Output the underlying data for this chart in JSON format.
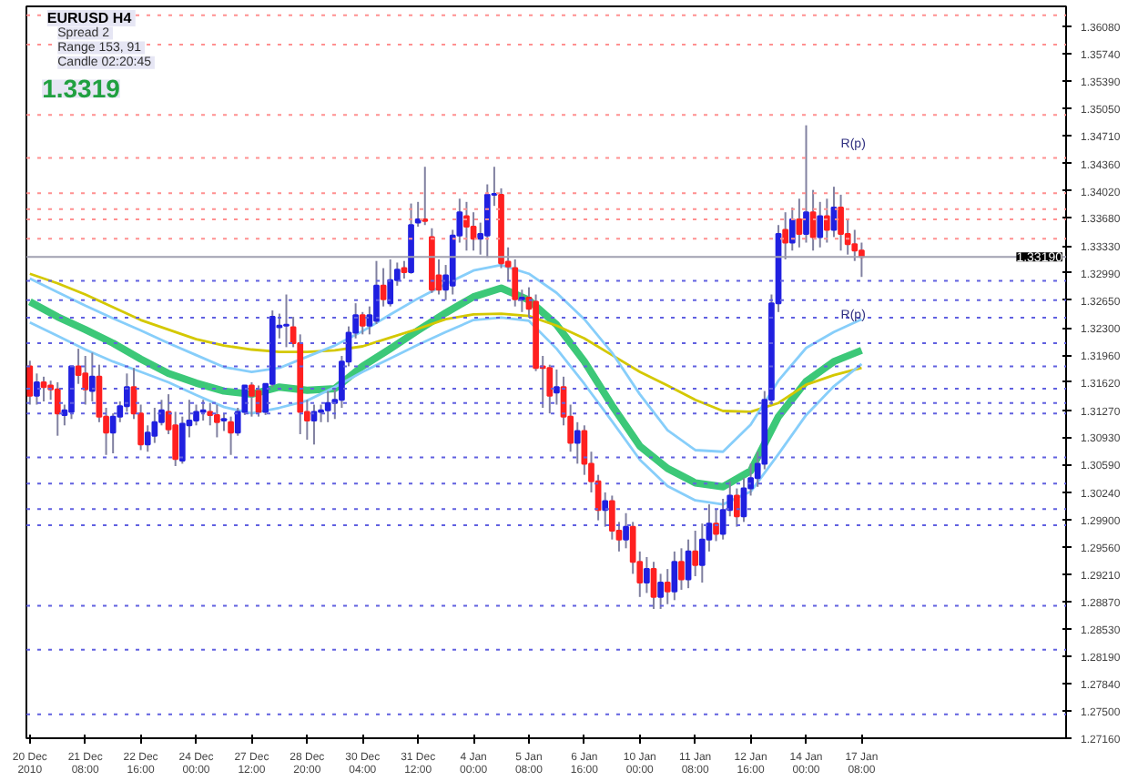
{
  "chart_data": {
    "type": "candlestick",
    "title": "EURUSD  H4",
    "annotations": [
      "Spread  2",
      "Range  153, 91",
      "Candle  02:20:45",
      "1.3319",
      {
        "text": "R(p)",
        "y": 1.3452
      },
      {
        "text": "R(p)",
        "y": 1.3237
      }
    ],
    "categories": [
      "20 Dec 2010",
      null,
      null,
      null,
      null,
      null,
      null,
      null,
      "21 Dec 08:00",
      null,
      null,
      null,
      null,
      null,
      null,
      null,
      "22 Dec 16:00",
      null,
      null,
      null,
      null,
      null,
      null,
      null,
      "24 Dec 00:00",
      null,
      null,
      null,
      null,
      null,
      null,
      null,
      "27 Dec 12:00",
      null,
      null,
      null,
      null,
      null,
      null,
      null,
      "28 Dec 20:00",
      null,
      null,
      null,
      null,
      null,
      null,
      null,
      "30 Dec 04:00",
      null,
      null,
      null,
      null,
      null,
      null,
      null,
      "31 Dec 12:00",
      null,
      null,
      null,
      null,
      null,
      null,
      null,
      "4 Jan 00:00",
      null,
      null,
      null,
      null,
      null,
      null,
      null,
      "5 Jan 08:00",
      null,
      null,
      null,
      null,
      null,
      null,
      null,
      "6 Jan 16:00",
      null,
      null,
      null,
      null,
      null,
      null,
      null,
      "10 Jan 00:00",
      null,
      null,
      null,
      null,
      null,
      null,
      null,
      "11 Jan 08:00",
      null,
      null,
      null,
      null,
      null,
      null,
      null,
      "12 Jan 16:00",
      null,
      null,
      null,
      null,
      null,
      null,
      null,
      "14 Jan 00:00",
      null,
      null,
      null,
      null,
      null,
      null,
      null,
      "17 Jan 08:00",
      null,
      null,
      null,
      null,
      null,
      null,
      null,
      null,
      null,
      null,
      null,
      null,
      null,
      null,
      null,
      null,
      null,
      null,
      null,
      null,
      null,
      null,
      null,
      null,
      null,
      null,
      null,
      null,
      null
    ],
    "ohlc": [
      [
        1.3182,
        1.3189,
        1.3134,
        1.3145
      ],
      [
        1.3145,
        1.3173,
        1.3134,
        1.3162
      ],
      [
        1.3162,
        1.3169,
        1.3138,
        1.3156
      ],
      [
        1.3158,
        1.3164,
        1.314,
        1.3153
      ],
      [
        1.3153,
        1.3162,
        1.3095,
        1.3123
      ],
      [
        1.3121,
        1.3134,
        1.3108,
        1.3127
      ],
      [
        1.3125,
        1.3182,
        1.3116,
        1.3182
      ],
      [
        1.3182,
        1.3204,
        1.316,
        1.3171
      ],
      [
        1.3173,
        1.3195,
        1.3134,
        1.3153
      ],
      [
        1.3151,
        1.3199,
        1.3138,
        1.3169
      ],
      [
        1.3169,
        1.3184,
        1.3112,
        1.3119
      ],
      [
        1.3119,
        1.313,
        1.3071,
        1.3099
      ],
      [
        1.3099,
        1.3123,
        1.3073,
        1.3119
      ],
      [
        1.3119,
        1.3138,
        1.3112,
        1.3132
      ],
      [
        1.3132,
        1.3173,
        1.3125,
        1.3156
      ],
      [
        1.3156,
        1.318,
        1.3116,
        1.3123
      ],
      [
        1.3123,
        1.3134,
        1.3077,
        1.3084
      ],
      [
        1.3084,
        1.3108,
        1.3075,
        1.3099
      ],
      [
        1.3095,
        1.313,
        1.3086,
        1.3112
      ],
      [
        1.3112,
        1.314,
        1.3108,
        1.3127
      ],
      [
        1.3125,
        1.3147,
        1.3097,
        1.3103
      ],
      [
        1.3108,
        1.3125,
        1.3057,
        1.3066
      ],
      [
        1.3064,
        1.3119,
        1.306,
        1.311
      ],
      [
        1.3108,
        1.314,
        1.3093,
        1.3114
      ],
      [
        1.3114,
        1.3134,
        1.3108,
        1.3125
      ],
      [
        1.3125,
        1.314,
        1.3114,
        1.3127
      ],
      [
        1.3125,
        1.3136,
        1.3108,
        1.3121
      ],
      [
        1.3121,
        1.3134,
        1.3093,
        1.3112
      ],
      [
        1.3114,
        1.3123,
        1.3101,
        1.3116
      ],
      [
        1.3112,
        1.3119,
        1.3071,
        1.3099
      ],
      [
        1.3099,
        1.313,
        1.3095,
        1.3125
      ],
      [
        1.3125,
        1.3158,
        1.3121,
        1.3158
      ],
      [
        1.3158,
        1.3162,
        1.3119,
        1.3145
      ],
      [
        1.3151,
        1.3158,
        1.3119,
        1.3125
      ],
      [
        1.3125,
        1.316,
        1.3121,
        1.316
      ],
      [
        1.316,
        1.3252,
        1.3156,
        1.3244
      ],
      [
        1.3231,
        1.3248,
        1.3217,
        1.3233
      ],
      [
        1.3233,
        1.3272,
        1.3206,
        1.3234
      ],
      [
        1.3231,
        1.3244,
        1.3206,
        1.3211
      ],
      [
        1.3211,
        1.3222,
        1.3097,
        1.3125
      ],
      [
        1.3125,
        1.314,
        1.309,
        1.3114
      ],
      [
        1.3114,
        1.3134,
        1.3084,
        1.3125
      ],
      [
        1.3125,
        1.3134,
        1.3112,
        1.3127
      ],
      [
        1.3127,
        1.3151,
        1.3112,
        1.3136
      ],
      [
        1.3136,
        1.3153,
        1.3116,
        1.314
      ],
      [
        1.314,
        1.3195,
        1.313,
        1.3188
      ],
      [
        1.3188,
        1.3232,
        1.3182,
        1.3224
      ],
      [
        1.3224,
        1.3261,
        1.3217,
        1.3246
      ],
      [
        1.3246,
        1.325,
        1.3222,
        1.3233
      ],
      [
        1.3233,
        1.3257,
        1.3222,
        1.3246
      ],
      [
        1.3239,
        1.3314,
        1.3235,
        1.3283
      ],
      [
        1.3283,
        1.3305,
        1.3257,
        1.3266
      ],
      [
        1.3261,
        1.3316,
        1.3257,
        1.329
      ],
      [
        1.329,
        1.3312,
        1.3283,
        1.3303
      ],
      [
        1.3305,
        1.3314,
        1.3292,
        1.33
      ],
      [
        1.33,
        1.3386,
        1.3298,
        1.3359
      ],
      [
        1.3362,
        1.3388,
        1.3357,
        1.3366
      ],
      [
        1.3366,
        1.3432,
        1.3359,
        1.3364
      ],
      [
        1.3344,
        1.3355,
        1.3274,
        1.3278
      ],
      [
        1.3296,
        1.3316,
        1.3272,
        1.3278
      ],
      [
        1.3278,
        1.3309,
        1.3265,
        1.3296
      ],
      [
        1.3283,
        1.3353,
        1.3272,
        1.3346
      ],
      [
        1.3346,
        1.3392,
        1.3337,
        1.3375
      ],
      [
        1.337,
        1.3388,
        1.3327,
        1.3357
      ],
      [
        1.3357,
        1.3375,
        1.3327,
        1.3342
      ],
      [
        1.3342,
        1.3362,
        1.3322,
        1.3348
      ],
      [
        1.3346,
        1.341,
        1.3318,
        1.3397
      ],
      [
        1.3397,
        1.3432,
        1.3383,
        1.3398
      ],
      [
        1.3397,
        1.3405,
        1.3305,
        1.3311
      ],
      [
        1.3313,
        1.3331,
        1.3289,
        1.3307
      ],
      [
        1.3305,
        1.3316,
        1.3257,
        1.3266
      ],
      [
        1.3266,
        1.3278,
        1.325,
        1.3268
      ],
      [
        1.3268,
        1.3281,
        1.3243,
        1.3254
      ],
      [
        1.3263,
        1.3272,
        1.3176,
        1.318
      ],
      [
        1.3182,
        1.3195,
        1.313,
        1.318
      ],
      [
        1.318,
        1.3184,
        1.3123,
        1.3145
      ],
      [
        1.3149,
        1.3178,
        1.3134,
        1.3156
      ],
      [
        1.3156,
        1.3169,
        1.3108,
        1.3119
      ],
      [
        1.3119,
        1.3134,
        1.3075,
        1.3086
      ],
      [
        1.3086,
        1.3112,
        1.306,
        1.3101
      ],
      [
        1.3101,
        1.3108,
        1.3046,
        1.306
      ],
      [
        1.306,
        1.3075,
        1.3024,
        1.3038
      ],
      [
        1.3038,
        1.3046,
        1.2989,
        1.3002
      ],
      [
        1.3002,
        1.3024,
        1.2981,
        1.3013
      ],
      [
        1.3013,
        1.302,
        1.2965,
        1.2976
      ],
      [
        1.2976,
        1.2987,
        1.295,
        1.2965
      ],
      [
        1.2965,
        1.2998,
        1.2954,
        1.2981
      ],
      [
        1.2981,
        1.2987,
        1.2922,
        1.2937
      ],
      [
        1.2937,
        1.295,
        1.2893,
        1.2911
      ],
      [
        1.2911,
        1.2943,
        1.2898,
        1.2928
      ],
      [
        1.2928,
        1.2937,
        1.2878,
        1.2893
      ],
      [
        1.2893,
        1.2922,
        1.2878,
        1.2911
      ],
      [
        1.2911,
        1.2928,
        1.2884,
        1.29
      ],
      [
        1.29,
        1.295,
        1.2889,
        1.2937
      ],
      [
        1.2937,
        1.2954,
        1.2902,
        1.2915
      ],
      [
        1.2915,
        1.2965,
        1.2904,
        1.295
      ],
      [
        1.295,
        1.2976,
        1.2919,
        1.2933
      ],
      [
        1.2933,
        1.2985,
        1.2911,
        1.2965
      ],
      [
        1.2965,
        1.3009,
        1.295,
        1.2985
      ],
      [
        1.2985,
        1.3003,
        1.2963,
        1.2972
      ],
      [
        1.2972,
        1.3016,
        1.2965,
        1.3002
      ],
      [
        1.3002,
        1.3038,
        1.2994,
        1.302
      ],
      [
        1.302,
        1.3029,
        1.2981,
        1.2994
      ],
      [
        1.2994,
        1.3042,
        1.2987,
        1.3029
      ],
      [
        1.3029,
        1.306,
        1.302,
        1.3042
      ],
      [
        1.3042,
        1.3075,
        1.3031,
        1.306
      ],
      [
        1.306,
        1.3151,
        1.3053,
        1.314
      ],
      [
        1.314,
        1.3272,
        1.3134,
        1.3261
      ],
      [
        1.3261,
        1.3359,
        1.325,
        1.3348
      ],
      [
        1.3353,
        1.3375,
        1.3316,
        1.3337
      ],
      [
        1.3337,
        1.3381,
        1.3327,
        1.3366
      ],
      [
        1.3366,
        1.3392,
        1.3331,
        1.3348
      ],
      [
        1.3348,
        1.3484,
        1.3337,
        1.3375
      ],
      [
        1.3375,
        1.3403,
        1.3327,
        1.3344
      ],
      [
        1.3344,
        1.3388,
        1.3331,
        1.337
      ],
      [
        1.337,
        1.3392,
        1.3337,
        1.3353
      ],
      [
        1.3353,
        1.3407,
        1.3344,
        1.3381
      ],
      [
        1.3381,
        1.3397,
        1.3327,
        1.3348
      ],
      [
        1.3348,
        1.3366,
        1.3322,
        1.3335
      ],
      [
        1.3335,
        1.3353,
        1.3314,
        1.3327
      ],
      [
        1.3327,
        1.3337,
        1.3294,
        1.3319
      ],
      null,
      null,
      null,
      null,
      null,
      null,
      null,
      null,
      null,
      null,
      null,
      null,
      null,
      null,
      null,
      null,
      null,
      null,
      null,
      null,
      null,
      null,
      null,
      null,
      null,
      null,
      null,
      null,
      null
    ],
    "colors": [
      "#ff2020",
      "#2020e0",
      "#ff2020",
      "#ff2020",
      "#ff2020",
      "#2020e0",
      "#2020e0",
      "#ff2020",
      "#ff2020",
      "#2020e0",
      "#ff2020",
      "#ff2020",
      "#2020e0",
      "#2020e0",
      "#2020e0",
      "#ff2020",
      "#ff2020",
      "#2020e0",
      "#2020e0",
      "#2020e0",
      "#ff2020",
      "#ff2020",
      "#2020e0",
      "#2020e0",
      "#2020e0",
      "#2020e0",
      "#ff2020",
      "#ff2020",
      "#2020e0",
      "#ff2020",
      "#2020e0",
      "#2020e0",
      "#ff2020",
      "#ff2020",
      "#2020e0",
      "#2020e0",
      "#2020e0",
      "#2020e0",
      "#ff2020",
      "#ff2020",
      "#ff2020",
      "#2020e0",
      "#2020e0",
      "#2020e0",
      "#2020e0",
      "#2020e0",
      "#2020e0",
      "#2020e0",
      "#ff2020",
      "#2020e0",
      "#2020e0",
      "#ff2020",
      "#2020e0",
      "#2020e0",
      "#ff2020",
      "#2020e0",
      "#2020e0",
      "#ff2020",
      "#ff2020",
      "#ff2020",
      "#2020e0",
      "#2020e0",
      "#2020e0",
      "#ff2020",
      "#ff2020",
      "#2020e0",
      "#2020e0",
      "#2020e0",
      "#ff2020",
      "#ff2020",
      "#ff2020",
      "#2020e0",
      "#ff2020",
      "#ff2020",
      "#ff2020",
      "#ff2020",
      "#2020e0",
      "#ff2020",
      "#ff2020",
      "#2020e0",
      "#ff2020",
      "#ff2020",
      "#ff2020",
      "#2020e0",
      "#ff2020",
      "#ff2020",
      "#2020e0",
      "#ff2020",
      "#ff2020",
      "#2020e0",
      "#ff2020",
      "#2020e0",
      "#ff2020",
      "#2020e0",
      "#ff2020",
      "#2020e0",
      "#ff2020",
      "#2020e0",
      "#2020e0",
      "#ff2020",
      "#2020e0",
      "#2020e0",
      "#ff2020",
      "#2020e0",
      "#2020e0",
      "#2020e0",
      "#2020e0",
      "#2020e0",
      "#2020e0",
      "#ff2020",
      "#2020e0",
      "#ff2020",
      "#2020e0",
      "#ff2020",
      "#2020e0",
      "#ff2020",
      "#2020e0",
      "#ff2020",
      "#ff2020",
      "#ff2020",
      "#ff2020",
      null,
      null,
      null,
      null,
      null,
      null,
      null,
      null,
      null,
      null,
      null,
      null,
      null,
      null,
      null,
      null,
      null,
      null,
      null,
      null,
      null,
      null,
      null,
      null,
      null,
      null,
      null,
      null,
      null
    ],
    "series": [
      {
        "type": "line",
        "color": "#3cc878",
        "values": [
          1.3263,
          null,
          null,
          null,
          1.3244,
          null,
          null,
          null,
          1.3228,
          null,
          null,
          null,
          1.3211,
          null,
          null,
          null,
          1.3191,
          null,
          null,
          null,
          1.3173,
          null,
          null,
          null,
          1.3161,
          null,
          null,
          null,
          1.3151,
          null,
          null,
          null,
          1.3147,
          null,
          null,
          null,
          1.3156,
          null,
          null,
          null,
          1.3152,
          null,
          null,
          null,
          1.3154,
          null,
          null,
          null,
          1.3182,
          null,
          null,
          null,
          1.3204,
          null,
          null,
          null,
          1.3227,
          null,
          null,
          null,
          1.3249,
          null,
          null,
          null,
          1.3269,
          null,
          null,
          null,
          1.328,
          null,
          null,
          null,
          1.3265,
          null,
          null,
          null,
          1.3234,
          null,
          null,
          null,
          1.3188,
          null,
          null,
          null,
          1.3133,
          null,
          null,
          null,
          1.3082,
          null,
          null,
          null,
          1.3054,
          null,
          null,
          null,
          1.3036,
          null,
          null,
          null,
          1.3031,
          null,
          null,
          null,
          1.3051,
          null,
          null,
          null,
          1.3119,
          null,
          null,
          null,
          1.3163,
          null,
          null,
          null,
          1.3188,
          null,
          null,
          null,
          1.3202,
          null,
          null,
          null,
          null,
          null,
          null,
          null,
          null,
          null,
          null,
          null,
          null,
          null,
          null,
          null,
          null,
          null,
          null,
          null,
          null,
          null,
          null,
          null,
          null,
          null,
          null,
          null,
          null,
          null
        ]
      },
      {
        "type": "line",
        "color": "#d4c800",
        "values": [
          1.3298,
          null,
          null,
          null,
          1.3286,
          null,
          null,
          null,
          1.3272,
          null,
          null,
          null,
          1.3256,
          null,
          null,
          null,
          1.324,
          null,
          null,
          null,
          1.3228,
          null,
          null,
          null,
          1.3216,
          null,
          null,
          null,
          1.3208,
          null,
          null,
          null,
          1.3203,
          null,
          null,
          null,
          1.32,
          null,
          null,
          null,
          1.32,
          null,
          null,
          null,
          1.3202,
          null,
          null,
          null,
          1.3207,
          null,
          null,
          null,
          1.3218,
          null,
          null,
          null,
          1.3229,
          null,
          null,
          null,
          1.3241,
          null,
          null,
          null,
          1.3247,
          null,
          null,
          null,
          1.3248,
          null,
          null,
          null,
          1.3245,
          null,
          null,
          null,
          1.3233,
          null,
          null,
          null,
          1.3217,
          null,
          null,
          null,
          1.3196,
          null,
          null,
          null,
          1.3175,
          null,
          null,
          null,
          1.3158,
          null,
          null,
          null,
          1.314,
          null,
          null,
          null,
          1.3126,
          null,
          null,
          null,
          1.3125,
          null,
          null,
          null,
          1.3136,
          null,
          null,
          null,
          1.3159,
          null,
          null,
          null,
          1.3171,
          null,
          null,
          null,
          1.318,
          null,
          null,
          null,
          null,
          null,
          null,
          null,
          null,
          null,
          null,
          null,
          null,
          null,
          null,
          null,
          null,
          null,
          null,
          null,
          null,
          null,
          null,
          null,
          null,
          null,
          null,
          null,
          null,
          null
        ]
      },
      {
        "type": "line",
        "color": "#87cefa",
        "values": [
          1.3292,
          null,
          null,
          null,
          1.3275,
          null,
          null,
          null,
          1.3258,
          null,
          null,
          null,
          1.3242,
          null,
          null,
          null,
          1.3227,
          null,
          null,
          null,
          1.3211,
          null,
          null,
          null,
          1.3196,
          null,
          null,
          null,
          1.3181,
          null,
          null,
          null,
          1.3175,
          null,
          null,
          null,
          1.318,
          null,
          null,
          null,
          1.3194,
          null,
          null,
          null,
          1.3208,
          null,
          null,
          null,
          1.3226,
          null,
          null,
          null,
          1.3247,
          null,
          null,
          null,
          1.3267,
          null,
          null,
          null,
          1.3285,
          null,
          null,
          null,
          1.3302,
          null,
          null,
          null,
          1.3309,
          null,
          null,
          null,
          1.3298,
          null,
          null,
          null,
          1.3274,
          null,
          null,
          null,
          1.3241,
          null,
          null,
          null,
          1.3199,
          null,
          null,
          null,
          1.3147,
          null,
          null,
          null,
          1.3102,
          null,
          null,
          null,
          1.3077,
          null,
          null,
          null,
          1.3075,
          null,
          null,
          null,
          1.3109,
          null,
          null,
          null,
          1.3164,
          null,
          null,
          null,
          1.3205,
          null,
          null,
          null,
          1.3225,
          null,
          null,
          null,
          1.3241,
          null,
          null,
          null,
          null,
          null,
          null,
          null,
          null,
          null,
          null,
          null,
          null,
          null,
          null,
          null,
          null,
          null,
          null,
          null,
          null,
          null,
          null,
          null,
          null,
          null,
          null,
          null,
          null,
          null
        ]
      },
      {
        "type": "line",
        "color": "#87cefa",
        "values": [
          1.3237,
          null,
          null,
          null,
          1.322,
          null,
          null,
          null,
          1.3203,
          null,
          null,
          null,
          1.3188,
          null,
          null,
          null,
          1.3175,
          null,
          null,
          null,
          1.3162,
          null,
          null,
          null,
          1.3146,
          null,
          null,
          null,
          1.3131,
          null,
          null,
          null,
          1.3123,
          null,
          null,
          null,
          1.313,
          null,
          null,
          null,
          1.3139,
          null,
          null,
          null,
          1.3156,
          null,
          null,
          null,
          1.3175,
          null,
          null,
          null,
          1.3192,
          null,
          null,
          null,
          1.3209,
          null,
          null,
          null,
          1.3225,
          null,
          null,
          null,
          1.324,
          null,
          null,
          null,
          1.3243,
          null,
          null,
          null,
          1.3239,
          null,
          null,
          null,
          1.3204,
          null,
          null,
          null,
          1.316,
          null,
          null,
          null,
          1.3113,
          null,
          null,
          null,
          1.3065,
          null,
          null,
          null,
          1.3032,
          null,
          null,
          null,
          1.3014,
          null,
          null,
          null,
          1.3009,
          null,
          null,
          null,
          1.3025,
          null,
          null,
          null,
          1.3072,
          null,
          null,
          null,
          1.3121,
          null,
          null,
          null,
          1.3157,
          null,
          null,
          null,
          1.3185,
          null,
          null,
          null,
          null,
          null,
          null,
          null,
          null,
          null,
          null,
          null,
          null,
          null,
          null,
          null,
          null,
          null,
          null,
          null,
          null,
          null,
          null,
          null,
          null,
          null,
          null,
          null,
          null,
          null
        ]
      }
    ],
    "ref_lines": [
      {
        "axis": "y",
        "value": 1.3622,
        "color": "#ff9090",
        "line_style": "dotted"
      },
      {
        "axis": "y",
        "value": 1.3585,
        "color": "#ff9090",
        "line_style": "dotted"
      },
      {
        "axis": "y",
        "value": 1.3497,
        "color": "#ff9090",
        "line_style": "dotted"
      },
      {
        "axis": "y",
        "value": 1.3443,
        "color": "#ff9090",
        "line_style": "dotted"
      },
      {
        "axis": "y",
        "value": 1.3399,
        "color": "#ff9090",
        "line_style": "dotted"
      },
      {
        "axis": "y",
        "value": 1.3379,
        "color": "#ff9090",
        "line_style": "dotted"
      },
      {
        "axis": "y",
        "value": 1.3366,
        "color": "#ff9090",
        "line_style": "dotted"
      },
      {
        "axis": "y",
        "value": 1.3342,
        "color": "#ff9090",
        "line_style": "dotted"
      },
      {
        "axis": "y",
        "value": 1.3319,
        "label": "1.33190",
        "color": "#a0a0b0",
        "line_style": "solid"
      },
      {
        "axis": "y",
        "value": 1.3289,
        "color": "#6060e0",
        "line_style": "dotted"
      },
      {
        "axis": "y",
        "value": 1.3265,
        "color": "#6060e0",
        "line_style": "dotted"
      },
      {
        "axis": "y",
        "value": 1.3243,
        "color": "#6060e0",
        "line_style": "dotted"
      },
      {
        "axis": "y",
        "value": 1.3211,
        "color": "#6060e0",
        "line_style": "dotted"
      },
      {
        "axis": "y",
        "value": 1.3182,
        "color": "#6060e0",
        "line_style": "dotted"
      },
      {
        "axis": "y",
        "value": 1.3154,
        "color": "#6060e0",
        "line_style": "dotted"
      },
      {
        "axis": "y",
        "value": 1.3136,
        "color": "#6060e0",
        "line_style": "dotted"
      },
      {
        "axis": "y",
        "value": 1.3123,
        "color": "#6060e0",
        "line_style": "dotted"
      },
      {
        "axis": "y",
        "value": 1.3068,
        "color": "#6060e0",
        "line_style": "dotted"
      },
      {
        "axis": "y",
        "value": 1.3035,
        "color": "#6060e0",
        "line_style": "dotted"
      },
      {
        "axis": "y",
        "value": 1.3003,
        "color": "#6060e0",
        "line_style": "dotted"
      },
      {
        "axis": "y",
        "value": 1.2983,
        "color": "#6060e0",
        "line_style": "dotted"
      },
      {
        "axis": "y",
        "value": 1.2882,
        "color": "#6060e0",
        "line_style": "dotted"
      },
      {
        "axis": "y",
        "value": 1.2827,
        "color": "#6060e0",
        "line_style": "dotted"
      },
      {
        "axis": "y",
        "value": 1.2746,
        "color": "#6060e0",
        "line_style": "dotted"
      }
    ],
    "ylim": [
      1.2716,
      1.3633
    ],
    "yticks": [
      {
        "value": 1.2716,
        "label": "1.27160"
      },
      {
        "value": 1.275,
        "label": "1.27500"
      },
      {
        "value": 1.2784,
        "label": "1.27840"
      },
      {
        "value": 1.2819,
        "label": "1.28190"
      },
      {
        "value": 1.2853,
        "label": "1.28530"
      },
      {
        "value": 1.2887,
        "label": "1.28870"
      },
      {
        "value": 1.2921,
        "label": "1.29210"
      },
      {
        "value": 1.2956,
        "label": "1.29560"
      },
      {
        "value": 1.299,
        "label": "1.29900"
      },
      {
        "value": 1.3024,
        "label": "1.30240"
      },
      {
        "value": 1.3059,
        "label": "1.30590"
      },
      {
        "value": 1.3093,
        "label": "1.30930"
      },
      {
        "value": 1.3127,
        "label": "1.31270"
      },
      {
        "value": 1.3162,
        "label": "1.31620"
      },
      {
        "value": 1.3196,
        "label": "1.31960"
      },
      {
        "value": 1.323,
        "label": "1.32300"
      },
      {
        "value": 1.3265,
        "label": "1.32650"
      },
      {
        "value": 1.3299,
        "label": "1.32990"
      },
      {
        "value": 1.3333,
        "label": "1.33330"
      },
      {
        "value": 1.3368,
        "label": "1.33680"
      },
      {
        "value": 1.3402,
        "label": "1.34020"
      },
      {
        "value": 1.3436,
        "label": "1.34360"
      },
      {
        "value": 1.3471,
        "label": "1.34710"
      },
      {
        "value": 1.3505,
        "label": "1.35050"
      },
      {
        "value": 1.3539,
        "label": "1.35390"
      },
      {
        "value": 1.3574,
        "label": "1.35740"
      },
      {
        "value": 1.3608,
        "label": "1.36080"
      }
    ]
  }
}
